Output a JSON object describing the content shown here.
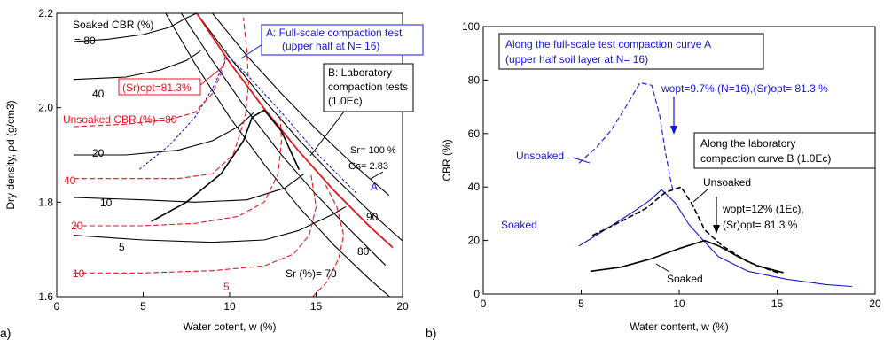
{
  "panel_labels": [
    "a)",
    "b)"
  ],
  "colors": {
    "black": "#000000",
    "red": "#e8141a",
    "blue": "#1515d6"
  },
  "chart_data": [
    {
      "type": "line",
      "panel": "a",
      "xlabel": "Water cotent, w (%)",
      "ylabel": "Dry density, ρd (g/cm3)",
      "xlim": [
        0,
        20
      ],
      "ylim": [
        1.6,
        2.2
      ],
      "xticks": [
        0,
        5,
        10,
        15,
        20
      ],
      "yticks": [
        1.6,
        1.8,
        2.0,
        2.2
      ],
      "grid": false,
      "annotations": {
        "soaked_header": "Soaked CBR (%)",
        "soaked_80": "= 80",
        "soaked_40": "40",
        "soaked_20": "20",
        "soaked_10": "10",
        "soaked_5": "5",
        "unsoaked_header": "Unsoaked CBR (%) =80",
        "unsoaked_40": "40",
        "unsoaked_20": "20",
        "unsoaked_10": "10",
        "unsoaked_5": "5",
        "sr_opt": "(Sr)opt=81.3%",
        "box_a_line1": "A: Full-scale compaction test",
        "box_a_line2": "(upper half at N= 16)",
        "box_b_line1": "B: Laboratory",
        "box_b_line2": "compaction tests",
        "box_b_line3": "(1.0Ec)",
        "sr_100": "Sr= 100 %",
        "gs": "Gs= 2.83",
        "label_A": "A",
        "sr_90": "90",
        "sr_80": "80",
        "sr_70": "Sr (%)= 70"
      },
      "series": [
        {
          "name": "Sr = 100 %",
          "color": "black",
          "dash": "solid",
          "x": [
            9.0,
            11,
            13,
            15,
            17,
            19.2
          ],
          "y": [
            2.2,
            2.11,
            2.03,
            1.955,
            1.885,
            1.815
          ]
        },
        {
          "name": "Sr = 90 %",
          "color": "black",
          "dash": "solid",
          "x": [
            8.1,
            10,
            12,
            14,
            16,
            18,
            20
          ],
          "y": [
            2.2,
            2.107,
            2.016,
            1.932,
            1.855,
            1.784,
            1.718
          ]
        },
        {
          "name": "Sr = 80 %",
          "color": "black",
          "dash": "solid",
          "x": [
            7.2,
            9,
            11,
            13,
            15,
            17,
            19
          ],
          "y": [
            2.2,
            2.1,
            1.995,
            1.9,
            1.816,
            1.74,
            1.667
          ]
        },
        {
          "name": "Sr = 70 %",
          "color": "black",
          "dash": "solid",
          "x": [
            6.3,
            8,
            10,
            12,
            14,
            16,
            18,
            20
          ],
          "y": [
            2.2,
            2.093,
            1.98,
            1.88,
            1.79,
            1.71,
            1.64,
            1.576
          ]
        },
        {
          "name": "(Sr)opt = 81.3 %",
          "color": "red",
          "dash": "solid",
          "x": [
            8.1,
            10,
            12,
            14,
            16,
            18,
            19.4
          ],
          "y": [
            2.2,
            2.096,
            1.998,
            1.908,
            1.826,
            1.752,
            1.705
          ]
        },
        {
          "name": "Curve A",
          "color": "blue",
          "dash": "dotted",
          "x": [
            4.8,
            6.5,
            8,
            9,
            9.5,
            9.9
          ],
          "y": [
            1.87,
            1.92,
            1.98,
            2.04,
            2.08,
            2.11
          ]
        },
        {
          "name": "Curve A wet side",
          "color": "blue",
          "dash": "dotted",
          "x": [
            9.9,
            11,
            13,
            15,
            17.3
          ],
          "y": [
            2.11,
            2.07,
            1.99,
            1.905,
            1.82
          ]
        },
        {
          "name": "Curve B",
          "color": "black",
          "dash": "solid",
          "x": [
            5.5,
            7.5,
            9.5,
            10.8,
            11.3,
            12,
            13,
            14
          ],
          "y": [
            1.76,
            1.8,
            1.86,
            1.93,
            1.98,
            1.995,
            1.95,
            1.87
          ]
        },
        {
          "name": "Soaked CBR 80",
          "color": "black",
          "dash": "solid",
          "x": [
            1,
            3,
            5,
            6.5,
            7.5,
            8.1
          ],
          "y": [
            2.14,
            2.145,
            2.155,
            2.17,
            2.19,
            2.2
          ]
        },
        {
          "name": "Soaked CBR 40",
          "color": "black",
          "dash": "solid",
          "x": [
            1,
            4,
            6,
            7.5,
            8.3
          ],
          "y": [
            2.06,
            2.065,
            2.08,
            2.1,
            2.12
          ]
        },
        {
          "name": "Soaked CBR 20",
          "color": "black",
          "dash": "solid",
          "x": [
            1,
            4,
            7,
            9,
            10.5,
            11.4
          ],
          "y": [
            1.9,
            1.9,
            1.91,
            1.93,
            1.96,
            1.99
          ]
        },
        {
          "name": "Soaked CBR 10",
          "color": "black",
          "dash": "solid",
          "x": [
            1,
            5,
            8,
            11,
            13.2,
            14.3
          ],
          "y": [
            1.81,
            1.805,
            1.8,
            1.805,
            1.83,
            1.86
          ]
        },
        {
          "name": "Soaked CBR 5",
          "color": "black",
          "dash": "solid",
          "x": [
            1,
            5,
            9,
            12,
            14,
            16,
            16.7
          ],
          "y": [
            1.73,
            1.72,
            1.715,
            1.72,
            1.74,
            1.775,
            1.79
          ]
        },
        {
          "name": "Unsoaked CBR 80",
          "color": "red",
          "dash": "dashed",
          "x": [
            1,
            4,
            6.5,
            8,
            9,
            9.6,
            9.8
          ],
          "y": [
            1.96,
            1.965,
            1.975,
            1.99,
            2.03,
            2.08,
            2.12
          ]
        },
        {
          "name": "Unsoaked CBR 40",
          "color": "red",
          "dash": "dashed",
          "x": [
            1,
            4,
            7,
            9,
            10.2,
            10.9,
            11.1,
            11.0,
            10.8
          ],
          "y": [
            1.85,
            1.85,
            1.85,
            1.86,
            1.9,
            1.98,
            2.05,
            2.12,
            2.19
          ]
        },
        {
          "name": "Unsoaked CBR 20",
          "color": "red",
          "dash": "dashed",
          "x": [
            1,
            5,
            8,
            10.5,
            12,
            12.8,
            13.0,
            12.9
          ],
          "y": [
            1.75,
            1.75,
            1.755,
            1.77,
            1.8,
            1.86,
            1.93,
            1.99
          ]
        },
        {
          "name": "Unsoaked CBR 10",
          "color": "red",
          "dash": "dashed",
          "x": [
            1,
            5,
            9,
            12,
            13.7,
            14.6,
            15.0,
            14.7
          ],
          "y": [
            1.65,
            1.65,
            1.655,
            1.665,
            1.69,
            1.73,
            1.79,
            1.86
          ]
        },
        {
          "name": "Unsoaked CBR 5",
          "color": "red",
          "dash": "dashed",
          "x": [
            14.8,
            15.6,
            16.3,
            16.6,
            16.2,
            15.5
          ],
          "y": [
            1.6,
            1.63,
            1.68,
            1.73,
            1.79,
            1.84
          ]
        }
      ]
    },
    {
      "type": "line",
      "panel": "b",
      "xlabel": "Water content, w (%)",
      "ylabel": "CBR (%)",
      "xlim": [
        0,
        20
      ],
      "ylim": [
        0,
        100
      ],
      "xticks": [
        0,
        5,
        10,
        15,
        20
      ],
      "yticks": [
        0,
        20,
        40,
        60,
        80,
        100
      ],
      "grid": false,
      "annotations": {
        "box_a_line1": "Along the full-scale test compaction curve A",
        "box_a_line2": "(upper half soil layer at N= 16)",
        "wopt_a": "wopt=9.7% (N=16),(Sr)opt= 81.3 %",
        "unsoaked_blue": "Unsoaked",
        "box_b_line1": "Along the laboratory",
        "box_b_line2": "compaction curve B (1.0Ec)",
        "unsoaked_black": "Unsoaked",
        "wopt_b_line1": "wopt=12% (1Ec),",
        "wopt_b_line2": "(Sr)opt= 81.3 %",
        "soaked_blue": "Soaked",
        "soaked_black": "Soaked"
      },
      "series": [
        {
          "name": "Unsoaked (curve A)",
          "color": "blue",
          "dash": "dashed",
          "x": [
            4.9,
            5.8,
            6.5,
            7.2,
            8.0,
            8.6,
            9.0,
            9.3,
            9.55,
            9.7
          ],
          "y": [
            49,
            55,
            61,
            69,
            79,
            78,
            67,
            53,
            43,
            38
          ]
        },
        {
          "name": "Soaked (curve A)",
          "color": "blue",
          "dash": "solid",
          "x": [
            4.9,
            6,
            7.5,
            8.5,
            9.1,
            9.8,
            10.5,
            11.3,
            12,
            13.5,
            15.5,
            17.5,
            18.8
          ],
          "y": [
            18,
            23,
            30,
            35,
            39,
            34,
            26,
            19.5,
            14,
            8.5,
            5.5,
            3.5,
            2.8
          ]
        },
        {
          "name": "Unsoaked (curve B)",
          "color": "black",
          "dash": "dashed",
          "x": [
            5.6,
            7,
            8.3,
            9.3,
            10.1,
            10.7,
            11.3,
            12.2,
            13.5,
            15
          ],
          "y": [
            22,
            27,
            32,
            38,
            40,
            33,
            24,
            18,
            12,
            8
          ]
        },
        {
          "name": "Soaked (curve B)",
          "color": "black",
          "dash": "solid",
          "x": [
            5.5,
            7,
            8.5,
            10,
            11.3,
            12,
            13,
            14,
            15.3
          ],
          "y": [
            8.5,
            10,
            13,
            17,
            20,
            18,
            14,
            10.5,
            8
          ]
        }
      ]
    }
  ]
}
